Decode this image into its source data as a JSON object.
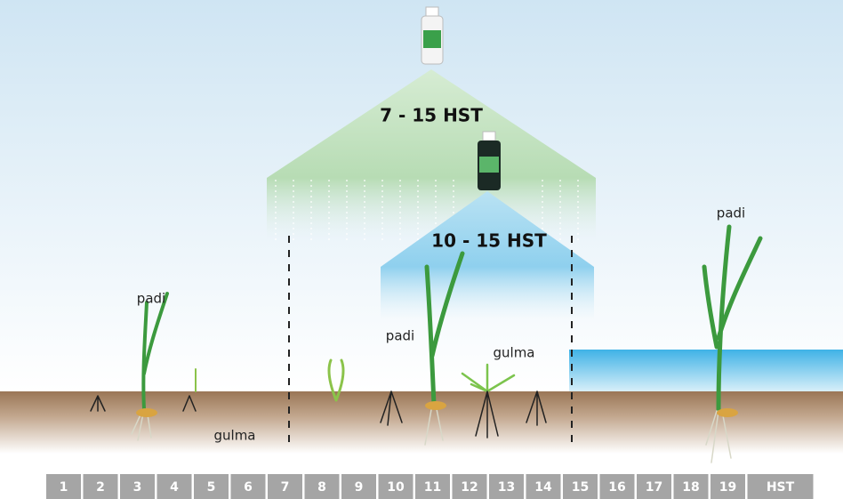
{
  "ranges": [
    {
      "label": "7 - 15 HST"
    },
    {
      "label": "10 - 15 HST"
    }
  ],
  "plant_labels": [
    "padi",
    "padi",
    "padi"
  ],
  "weed_labels": [
    "gulma",
    "gulma"
  ],
  "days": [
    "1",
    "2",
    "3",
    "4",
    "5",
    "6",
    "7",
    "8",
    "9",
    "10",
    "11",
    "12",
    "13",
    "14",
    "15",
    "16",
    "17",
    "18",
    "19",
    "HST"
  ]
}
